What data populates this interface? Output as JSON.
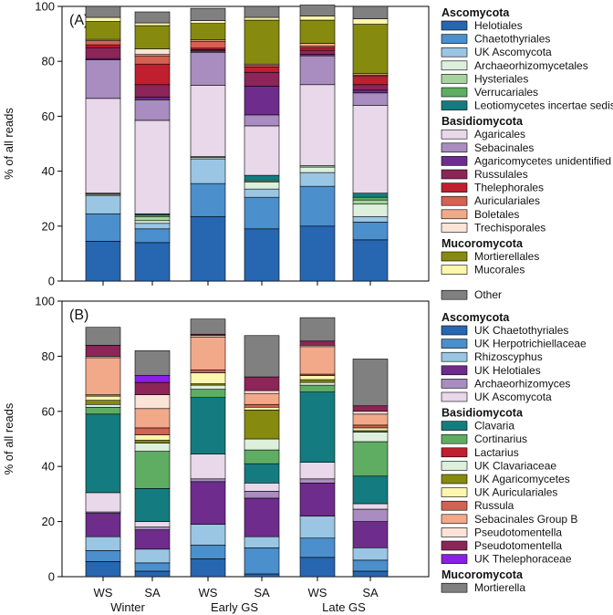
{
  "chart_data": [
    {
      "type": "stacked-bar",
      "panel": "(A)",
      "ylabel": "% of all reads",
      "ylim": [
        0,
        100
      ],
      "yticks": [
        0,
        20,
        40,
        60,
        80,
        100
      ],
      "categories": [
        "Winter WS",
        "Winter SA",
        "Early GS WS",
        "Early GS SA",
        "Late GS WS",
        "Late GS SA"
      ],
      "legend_groups": [
        {
          "title": "Ascomycota",
          "items": [
            "Helotiales",
            "Chaetothyriales",
            "UK Ascomycota",
            "Archaeorhizomycetales",
            "Hysteriales",
            "Verrucariales",
            "Leotiomycetes incertae sedis"
          ]
        },
        {
          "title": "Basidiomycota",
          "items": [
            "Agaricales",
            "Sebacinales",
            "Agaricomycetes unidentified",
            "Russulales",
            "Thelephorales",
            "Auriculariales",
            "Boletales",
            "Trechisporales"
          ]
        },
        {
          "title": "Mucoromycota",
          "items": [
            "Mortierellales",
            "Mucorales"
          ]
        },
        {
          "title": "",
          "items": [
            "Other"
          ]
        }
      ],
      "series": [
        {
          "name": "Helotiales",
          "color": "#2766b0",
          "values": [
            14.5,
            14,
            23.5,
            19,
            20,
            15
          ]
        },
        {
          "name": "Chaetothyriales",
          "color": "#4b8fcc",
          "values": [
            10,
            5,
            12,
            11.5,
            14.5,
            6.5
          ]
        },
        {
          "name": "UK Ascomycota",
          "color": "#9ac6e4",
          "values": [
            6.5,
            2,
            9,
            3,
            5,
            2
          ]
        },
        {
          "name": "Archaeorhizomycetales",
          "color": "#dcf0dc",
          "values": [
            0.5,
            1,
            0.5,
            2.5,
            2,
            4.5
          ]
        },
        {
          "name": "Hysteriales",
          "color": "#a6d4a0",
          "values": [
            0.3,
            1.5,
            0.3,
            0.5,
            0.5,
            1.5
          ]
        },
        {
          "name": "Verrucariales",
          "color": "#5fad63",
          "values": [
            0.2,
            0.5,
            0,
            0,
            0,
            1
          ]
        },
        {
          "name": "Leotiomycetes incertae sedis",
          "color": "#147c80",
          "values": [
            0,
            0.5,
            0,
            2,
            0,
            1.5
          ]
        },
        {
          "name": "Agaricales",
          "color": "#e8d8ea",
          "values": [
            34.5,
            34,
            26,
            18,
            29.5,
            32
          ]
        },
        {
          "name": "Sebacinales",
          "color": "#a98cc0",
          "values": [
            14,
            7.5,
            12,
            4,
            10.5,
            4.5
          ]
        },
        {
          "name": "Agaricomycetes unidentified",
          "color": "#6e2c8c",
          "values": [
            0.5,
            1,
            0.5,
            10.5,
            0.5,
            1
          ]
        },
        {
          "name": "Russulales",
          "color": "#8c2558",
          "values": [
            4,
            4.5,
            0.5,
            5,
            1.5,
            2
          ]
        },
        {
          "name": "Thelephorales",
          "color": "#bf1f2e",
          "values": [
            1,
            7.5,
            0.5,
            2,
            1,
            3
          ]
        },
        {
          "name": "Auriculariales",
          "color": "#d36253",
          "values": [
            1.5,
            3,
            2.5,
            0.5,
            0.5,
            0.5
          ]
        },
        {
          "name": "Boletales",
          "color": "#f2a98a",
          "values": [
            0.5,
            0.5,
            0.5,
            0.5,
            1,
            0.5
          ]
        },
        {
          "name": "Trechisporales",
          "color": "#fce3d8",
          "values": [
            0,
            2,
            0,
            0,
            0,
            0
          ]
        },
        {
          "name": "Mortierellales",
          "color": "#868b0f",
          "values": [
            6.5,
            8.5,
            6,
            16,
            8.5,
            18
          ]
        },
        {
          "name": "Mucorales",
          "color": "#fdf6ae",
          "values": [
            1.5,
            1,
            1,
            1,
            1.5,
            2
          ]
        },
        {
          "name": "Other",
          "color": "#808080",
          "values": [
            4,
            4,
            4.5,
            4,
            4,
            4.5
          ]
        }
      ]
    },
    {
      "type": "stacked-bar",
      "panel": "(B)",
      "ylabel": "% of all reads",
      "ylim": [
        0,
        100
      ],
      "yticks": [
        0,
        20,
        40,
        60,
        80,
        100
      ],
      "categories": [
        "Winter WS",
        "Winter SA",
        "Early GS WS",
        "Early GS SA",
        "Late GS WS",
        "Late GS SA"
      ],
      "legend_groups": [
        {
          "title": "Ascomycota",
          "items": [
            "UK Chaetothyriales",
            "UK Herpotrichiellaceae",
            "Rhizoscyphus",
            "UK Helotiales",
            "Archaeorhizomyces",
            "UK Ascomycota"
          ]
        },
        {
          "title": "Basidiomycota",
          "items": [
            "Clavaria",
            "Cortinarius",
            "Lactarius",
            "UK Clavariaceae",
            "UK Agaricomycetes",
            "UK Auriculariales",
            "Russula",
            "Sebacinales Group B",
            "Pseudotomentella",
            "Pseudotomentella",
            "UK Thelephoraceae"
          ]
        },
        {
          "title": "Mucoromycota",
          "items": [
            "Mortierella"
          ]
        }
      ],
      "series": [
        {
          "name": "UK Chaetothyriales",
          "color": "#2766b0",
          "values": [
            5.5,
            2,
            6.5,
            1,
            7,
            2
          ]
        },
        {
          "name": "UK Herpotrichiellaceae",
          "color": "#4b8fcc",
          "values": [
            4,
            3,
            5,
            9.5,
            7,
            4
          ]
        },
        {
          "name": "Rhizoscyphus",
          "color": "#9ac6e4",
          "values": [
            5,
            5,
            7.5,
            4,
            8,
            4.5
          ]
        },
        {
          "name": "UK Helotiales",
          "color": "#6e2c8c",
          "values": [
            8.5,
            7,
            15.5,
            14,
            12,
            9.5
          ]
        },
        {
          "name": "Archaeorhizomyces",
          "color": "#a98cc0",
          "values": [
            0.5,
            1,
            1,
            2.5,
            1.5,
            4.5
          ]
        },
        {
          "name": "UK Ascomycota",
          "color": "#e8d8ea",
          "values": [
            7,
            2,
            9,
            3,
            6,
            2
          ]
        },
        {
          "name": "Clavaria",
          "color": "#147c80",
          "values": [
            28.5,
            12,
            20.5,
            7,
            25.5,
            10
          ]
        },
        {
          "name": "Cortinarius",
          "color": "#5fad63",
          "values": [
            2.5,
            13.5,
            3,
            5,
            2.5,
            12.5
          ]
        },
        {
          "name": "Lactarius",
          "color": "#bf1f2e",
          "values": [
            0,
            0,
            0,
            0,
            0,
            0
          ]
        },
        {
          "name": "UK Clavariaceae",
          "color": "#dcf0dc",
          "values": [
            1,
            3,
            1.5,
            4,
            1,
            3.5
          ]
        },
        {
          "name": "UK Agaricomycetes",
          "color": "#868b0f",
          "values": [
            1.5,
            1,
            0.5,
            10.5,
            1,
            0.5
          ]
        },
        {
          "name": "UK Auriculariales",
          "color": "#fdf6ae",
          "values": [
            1.5,
            2,
            4,
            1,
            1.5,
            1
          ]
        },
        {
          "name": "Russula",
          "color": "#d36253",
          "values": [
            0.5,
            2.5,
            1,
            1,
            0.5,
            1
          ]
        },
        {
          "name": "Sebacinales Group B",
          "color": "#f2a98a",
          "values": [
            13.5,
            7,
            12,
            4,
            10,
            4
          ]
        },
        {
          "name": "Pseudotomentella",
          "color": "#fce3d8",
          "values": [
            0.5,
            5,
            0.5,
            1,
            0.5,
            1
          ]
        },
        {
          "name": "Pseudotomentella",
          "color": "#8c2558",
          "values": [
            4,
            4.5,
            0.5,
            5,
            1.5,
            2
          ]
        },
        {
          "name": "UK Thelephoraceae",
          "color": "#8b1fe8",
          "values": [
            0,
            2.5,
            0,
            0,
            0,
            0
          ]
        },
        {
          "name": "Mortierella",
          "color": "#808080",
          "values": [
            6.5,
            9,
            5.5,
            15,
            8.5,
            17
          ]
        }
      ]
    }
  ],
  "x_axis": {
    "bar_labels": [
      "WS",
      "SA",
      "WS",
      "SA",
      "WS",
      "SA"
    ],
    "group_labels": [
      "Winter",
      "Early GS",
      "Late GS"
    ]
  }
}
